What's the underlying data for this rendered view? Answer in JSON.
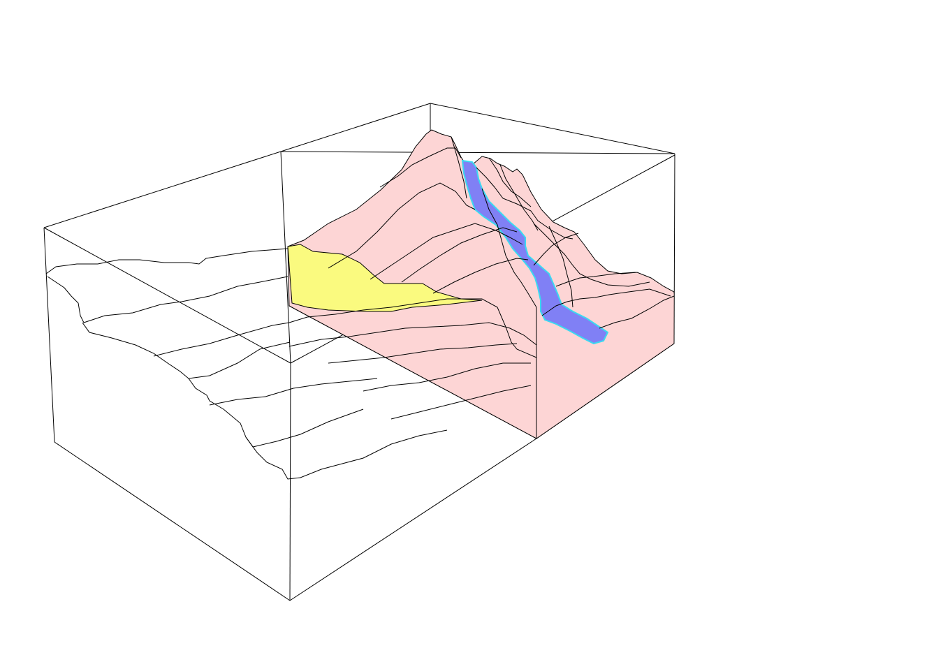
{
  "diagram": {
    "kind": "3d terrain block model",
    "colors": {
      "background": "#ffffff",
      "box_edges": "#000000",
      "contours": "#000000",
      "terrain_block": "#fdd5d5",
      "highlight_region": "#fafa7f",
      "channel_fill": "#8080f5",
      "channel_outline": "#3ad9f0"
    },
    "elements": {
      "bounding_box": "wireframe",
      "terrain_block": "pink",
      "highlight_region": "yellow",
      "channel": "blue"
    }
  }
}
